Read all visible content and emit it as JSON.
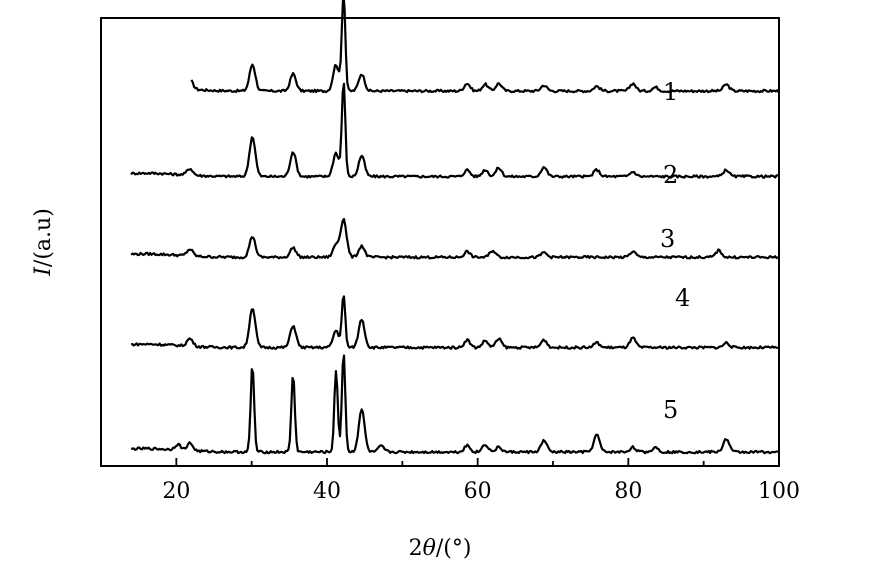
{
  "chart_data": {
    "type": "line",
    "title": "",
    "xlabel_prefix": "2",
    "xlabel_theta": "θ",
    "xlabel_suffix": "/(°)",
    "ylabel_italic": "I",
    "ylabel_suffix": "/(a.u)",
    "xlim": [
      10,
      100
    ],
    "xticks": [
      20,
      40,
      60,
      80,
      100
    ],
    "yticks": [],
    "grid": false,
    "legend": "none",
    "series_labels": [
      "1",
      "2",
      "3",
      "4",
      "5"
    ],
    "peaks_2theta": [
      21.8,
      30.1,
      35.5,
      41.2,
      42.2,
      44.6,
      58.6,
      61.0,
      62.8,
      68.8,
      75.8,
      80.6,
      93.0
    ],
    "series": [
      {
        "name": "1",
        "offset": 3.8,
        "values": [
          [
            21.8,
            0.1
          ],
          [
            30.1,
            0.28
          ],
          [
            35.5,
            0.18
          ],
          [
            41.2,
            0.28
          ],
          [
            42.2,
            1.05
          ],
          [
            44.6,
            0.18
          ],
          [
            58.6,
            0.08
          ],
          [
            61.0,
            0.07
          ],
          [
            62.8,
            0.08
          ],
          [
            68.8,
            0.06
          ],
          [
            75.8,
            0.05
          ],
          [
            80.6,
            0.08
          ],
          [
            83.6,
            0.04
          ],
          [
            93.0,
            0.07
          ]
        ]
      },
      {
        "name": "2",
        "offset": 2.9,
        "values": [
          [
            21.8,
            0.07
          ],
          [
            30.1,
            0.42
          ],
          [
            35.5,
            0.26
          ],
          [
            41.2,
            0.25
          ],
          [
            42.2,
            1.0
          ],
          [
            44.6,
            0.22
          ],
          [
            58.6,
            0.07
          ],
          [
            61.0,
            0.07
          ],
          [
            62.8,
            0.09
          ],
          [
            68.8,
            0.1
          ],
          [
            75.8,
            0.07
          ],
          [
            80.6,
            0.05
          ],
          [
            93.0,
            0.07
          ]
        ]
      },
      {
        "name": "3",
        "offset": 2.05,
        "values": [
          [
            21.8,
            0.07
          ],
          [
            30.1,
            0.22
          ],
          [
            35.5,
            0.1
          ],
          [
            41.2,
            0.13
          ],
          [
            42.2,
            0.4
          ],
          [
            44.6,
            0.12
          ],
          [
            58.6,
            0.06
          ],
          [
            62.0,
            0.07
          ],
          [
            68.8,
            0.05
          ],
          [
            80.6,
            0.06
          ],
          [
            92.0,
            0.07
          ]
        ]
      },
      {
        "name": "4",
        "offset": 1.1,
        "values": [
          [
            21.8,
            0.08
          ],
          [
            30.1,
            0.42
          ],
          [
            35.5,
            0.23
          ],
          [
            41.2,
            0.18
          ],
          [
            42.2,
            0.55
          ],
          [
            44.6,
            0.3
          ],
          [
            58.6,
            0.08
          ],
          [
            61.0,
            0.07
          ],
          [
            62.8,
            0.09
          ],
          [
            68.8,
            0.08
          ],
          [
            75.8,
            0.05
          ],
          [
            80.6,
            0.1
          ],
          [
            93.0,
            0.05
          ]
        ]
      },
      {
        "name": "5",
        "offset": 0.0,
        "values": [
          [
            20.2,
            0.06
          ],
          [
            21.8,
            0.08
          ],
          [
            30.1,
            0.92
          ],
          [
            35.5,
            0.82
          ],
          [
            41.2,
            0.86
          ],
          [
            42.2,
            1.05
          ],
          [
            44.6,
            0.45
          ],
          [
            47.2,
            0.06
          ],
          [
            58.6,
            0.07
          ],
          [
            61.0,
            0.08
          ],
          [
            62.8,
            0.05
          ],
          [
            68.8,
            0.12
          ],
          [
            75.8,
            0.18
          ],
          [
            80.6,
            0.05
          ],
          [
            83.6,
            0.05
          ],
          [
            93.0,
            0.14
          ]
        ]
      }
    ]
  }
}
